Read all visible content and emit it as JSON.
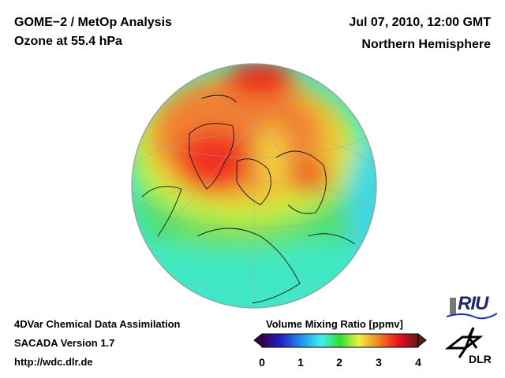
{
  "header": {
    "title_line1": "GOME−2 / MetOp Analysis",
    "title_line2": "Ozone at 55.4 hPa",
    "date": "Jul 07, 2010, 12:00 GMT",
    "region": "Northern Hemisphere"
  },
  "footer": {
    "line1": "4DVar Chemical Data Assimilation",
    "line2": "SACADA Version 1.7",
    "url": "http://wdc.dlr.de"
  },
  "colorbar": {
    "title": "Volume Mixing Ratio [ppmv]",
    "ticks": [
      "0",
      "1",
      "2",
      "3",
      "4"
    ],
    "range": [
      0,
      4
    ],
    "colors": [
      "#3a0050",
      "#2020c0",
      "#2090f0",
      "#40f0f0",
      "#30e030",
      "#f0f040",
      "#f08020",
      "#f01020",
      "#601818"
    ]
  },
  "logos": {
    "riu": "RIU",
    "dlr": "DLR"
  }
}
